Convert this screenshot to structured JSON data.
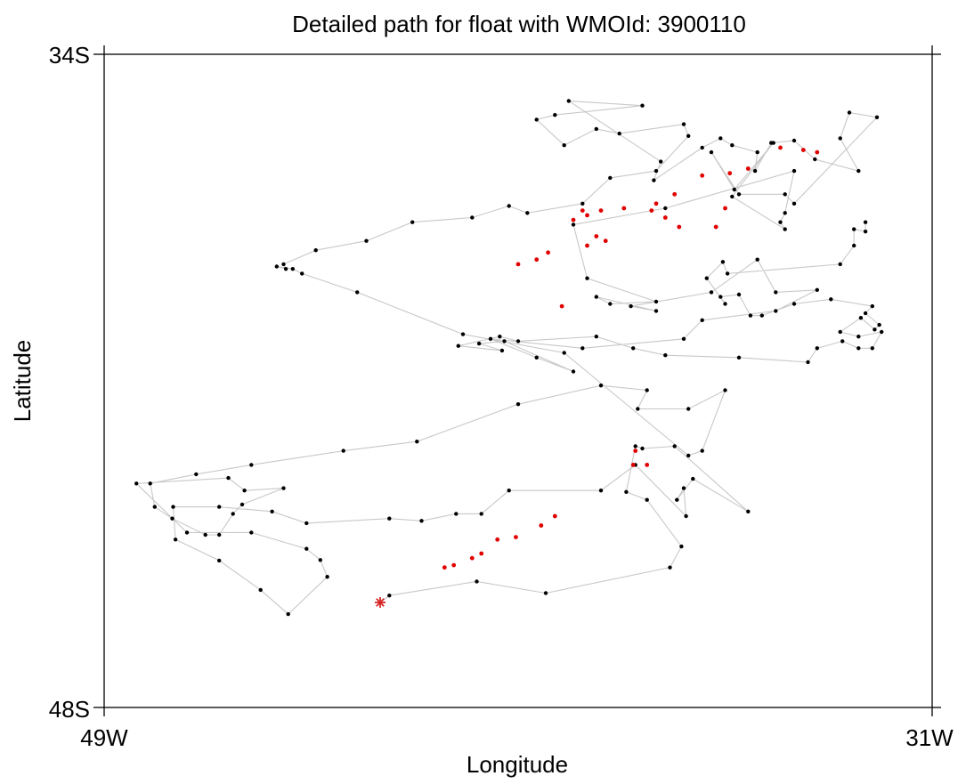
{
  "chart_data": {
    "type": "scatter",
    "title": "Detailed path for float with WMOId: 3900110",
    "xlabel": "Longitude",
    "ylabel": "Latitude",
    "xlim": [
      -49,
      -31
    ],
    "ylim": [
      -48,
      -34
    ],
    "x_tick_labels": [
      "49W",
      "31W"
    ],
    "y_tick_labels": [
      "34S",
      "48S"
    ],
    "grid": false,
    "colors": {
      "path": "#c8c8c8",
      "point": "#000000",
      "highlight": "#e00000",
      "start_marker": "#d62728"
    },
    "start_marker": {
      "x": -43.0,
      "y": -45.75,
      "symbol": "asterisk"
    },
    "series": [
      {
        "values": [
          [
            -43.0,
            -45.75
          ],
          [
            -42.8,
            -45.6
          ],
          [
            -40.9,
            -45.3
          ],
          [
            -39.4,
            -45.55
          ],
          [
            -36.7,
            -45.0
          ],
          [
            -36.45,
            -44.55
          ],
          [
            -37.2,
            -43.55
          ],
          [
            -37.65,
            -43.38
          ],
          [
            -37.45,
            -42.4
          ],
          [
            -37.3,
            -42.45
          ],
          [
            -36.6,
            -42.4
          ],
          [
            -35.0,
            -43.8
          ],
          [
            -36.2,
            -43.1
          ],
          [
            -36.55,
            -43.55
          ],
          [
            -36.4,
            -43.3
          ],
          [
            -36.35,
            -43.9
          ],
          [
            -37.45,
            -42.8
          ],
          [
            -38.2,
            -43.35
          ],
          [
            -40.2,
            -43.35
          ],
          [
            -40.8,
            -43.85
          ],
          [
            -41.35,
            -43.85
          ],
          [
            -42.1,
            -44.0
          ],
          [
            -42.8,
            -43.95
          ],
          [
            -44.6,
            -44.05
          ],
          [
            -45.35,
            -43.8
          ],
          [
            -46.5,
            -43.7
          ],
          [
            -47.5,
            -43.7
          ],
          [
            -47.45,
            -44.4
          ],
          [
            -46.5,
            -44.85
          ],
          [
            -45.6,
            -45.48
          ],
          [
            -45.0,
            -46.0
          ],
          [
            -44.15,
            -45.2
          ],
          [
            -44.3,
            -44.84
          ],
          [
            -44.6,
            -44.6
          ],
          [
            -45.8,
            -44.25
          ],
          [
            -47.2,
            -44.25
          ],
          [
            -48.3,
            -43.2
          ],
          [
            -46.3,
            -43.08
          ],
          [
            -45.95,
            -43.35
          ],
          [
            -45.1,
            -43.3
          ],
          [
            -46.0,
            -43.65
          ],
          [
            -46.2,
            -43.85
          ],
          [
            -46.5,
            -44.3
          ],
          [
            -46.8,
            -44.3
          ],
          [
            -47.52,
            -43.95
          ],
          [
            -47.9,
            -43.7
          ],
          [
            -48.0,
            -43.2
          ],
          [
            -47.0,
            -43.0
          ],
          [
            -45.8,
            -42.8
          ],
          [
            -43.8,
            -42.5
          ],
          [
            -42.2,
            -42.3
          ],
          [
            -40.0,
            -41.5
          ],
          [
            -38.2,
            -41.1
          ],
          [
            -37.2,
            -41.2
          ],
          [
            -37.4,
            -41.6
          ],
          [
            -36.3,
            -41.6
          ],
          [
            -35.5,
            -41.2
          ],
          [
            -36.0,
            -42.5
          ],
          [
            -36.3,
            -42.6
          ],
          [
            -39.0,
            -40.4
          ],
          [
            -41.2,
            -40.0
          ],
          [
            -43.5,
            -39.1
          ],
          [
            -44.7,
            -38.7
          ],
          [
            -44.9,
            -38.6
          ],
          [
            -45.25,
            -38.55
          ],
          [
            -45.05,
            -38.6
          ],
          [
            -45.1,
            -38.5
          ],
          [
            -44.4,
            -38.2
          ],
          [
            -43.3,
            -38.0
          ],
          [
            -42.3,
            -37.6
          ],
          [
            -41.0,
            -37.5
          ],
          [
            -40.2,
            -37.25
          ],
          [
            -39.8,
            -37.4
          ],
          [
            -38.6,
            -37.2
          ],
          [
            -38.0,
            -36.65
          ],
          [
            -37.0,
            -36.5
          ],
          [
            -36.3,
            -35.75
          ],
          [
            -36.4,
            -35.5
          ],
          [
            -37.8,
            -35.7
          ],
          [
            -38.3,
            -35.6
          ],
          [
            -39.0,
            -35.95
          ],
          [
            -39.6,
            -35.4
          ],
          [
            -39.2,
            -35.3
          ],
          [
            -37.3,
            -35.1
          ],
          [
            -38.9,
            -35.0
          ],
          [
            -36.9,
            -36.3
          ],
          [
            -37.05,
            -36.7
          ],
          [
            -36.0,
            -36.0
          ],
          [
            -35.6,
            -35.8
          ],
          [
            -35.35,
            -35.95
          ],
          [
            -34.8,
            -36.1
          ],
          [
            -34.85,
            -36.5
          ],
          [
            -34.5,
            -35.9
          ],
          [
            -34.0,
            -35.85
          ],
          [
            -33.55,
            -36.25
          ],
          [
            -32.6,
            -36.5
          ],
          [
            -33.0,
            -35.8
          ],
          [
            -32.8,
            -35.25
          ],
          [
            -32.2,
            -35.35
          ],
          [
            -34.0,
            -37.2
          ],
          [
            -34.2,
            -37.0
          ],
          [
            -35.2,
            -37.0
          ],
          [
            -35.8,
            -36.1
          ],
          [
            -35.3,
            -36.9
          ],
          [
            -34.45,
            -35.9
          ],
          [
            -35.35,
            -37.05
          ],
          [
            -34.2,
            -37.75
          ],
          [
            -34.3,
            -37.6
          ],
          [
            -34.2,
            -37.4
          ],
          [
            -34.0,
            -36.5
          ],
          [
            -36.8,
            -37.3
          ],
          [
            -38.8,
            -37.65
          ],
          [
            -38.5,
            -38.8
          ],
          [
            -37.0,
            -39.3
          ],
          [
            -38.0,
            -39.35
          ],
          [
            -38.3,
            -39.2
          ],
          [
            -37.0,
            -39.5
          ],
          [
            -37.55,
            -39.4
          ],
          [
            -35.8,
            -39.1
          ],
          [
            -34.8,
            -38.4
          ],
          [
            -34.4,
            -39.1
          ],
          [
            -33.5,
            -39.05
          ],
          [
            -34.4,
            -39.5
          ],
          [
            -36.0,
            -39.7
          ],
          [
            -36.4,
            -40.1
          ],
          [
            -38.6,
            -40.3
          ],
          [
            -40.6,
            -40.1
          ],
          [
            -39.6,
            -40.5
          ],
          [
            -38.8,
            -40.8
          ],
          [
            -40.3,
            -40.15
          ],
          [
            -40.85,
            -40.2
          ],
          [
            -40.35,
            -40.35
          ],
          [
            -41.3,
            -40.25
          ],
          [
            -40.4,
            -40.05
          ],
          [
            -40.0,
            -40.15
          ],
          [
            -38.3,
            -40.05
          ],
          [
            -37.5,
            -40.3
          ],
          [
            -36.8,
            -40.45
          ],
          [
            -35.2,
            -40.5
          ],
          [
            -33.7,
            -40.6
          ],
          [
            -33.5,
            -40.3
          ],
          [
            -32.95,
            -40.15
          ],
          [
            -32.6,
            -40.3
          ],
          [
            -32.3,
            -40.3
          ],
          [
            -32.1,
            -39.95
          ],
          [
            -32.6,
            -40.05
          ],
          [
            -33.0,
            -39.95
          ],
          [
            -32.55,
            -39.65
          ],
          [
            -32.25,
            -39.9
          ],
          [
            -32.15,
            -39.8
          ],
          [
            -32.45,
            -39.55
          ],
          [
            -32.3,
            -39.4
          ],
          [
            -33.2,
            -39.25
          ],
          [
            -34.0,
            -39.35
          ],
          [
            -34.7,
            -39.6
          ],
          [
            -34.95,
            -39.6
          ],
          [
            -35.2,
            -39.15
          ],
          [
            -35.6,
            -39.2
          ],
          [
            -35.5,
            -39.35
          ],
          [
            -35.9,
            -38.8
          ],
          [
            -35.55,
            -38.45
          ],
          [
            -35.45,
            -38.7
          ],
          [
            -33.0,
            -38.5
          ],
          [
            -32.7,
            -38.1
          ],
          [
            -32.7,
            -37.75
          ],
          [
            -32.45,
            -37.8
          ],
          [
            -32.45,
            -37.6
          ]
        ],
        "highlighted_points": [
          [
            -41.6,
            -45.0
          ],
          [
            -41.4,
            -44.95
          ],
          [
            -41.0,
            -44.8
          ],
          [
            -40.8,
            -44.7
          ],
          [
            -40.45,
            -44.4
          ],
          [
            -40.05,
            -44.35
          ],
          [
            -39.5,
            -44.1
          ],
          [
            -39.2,
            -43.9
          ],
          [
            -37.2,
            -42.8
          ],
          [
            -37.45,
            -42.5
          ],
          [
            -37.5,
            -42.8
          ],
          [
            -39.05,
            -39.4
          ],
          [
            -40.0,
            -38.5
          ],
          [
            -39.6,
            -38.4
          ],
          [
            -39.35,
            -38.25
          ],
          [
            -38.5,
            -38.1
          ],
          [
            -38.1,
            -38.0
          ],
          [
            -38.3,
            -37.9
          ],
          [
            -36.5,
            -37.7
          ],
          [
            -35.7,
            -37.7
          ],
          [
            -35.5,
            -37.3
          ],
          [
            -36.8,
            -37.5
          ],
          [
            -37.1,
            -37.35
          ],
          [
            -37.0,
            -37.2
          ],
          [
            -37.7,
            -37.3
          ],
          [
            -38.2,
            -37.35
          ],
          [
            -38.8,
            -37.55
          ],
          [
            -38.6,
            -37.35
          ],
          [
            -38.5,
            -37.45
          ],
          [
            -36.6,
            -37.0
          ],
          [
            -36.0,
            -36.6
          ],
          [
            -35.4,
            -36.55
          ],
          [
            -35.0,
            -36.45
          ],
          [
            -34.3,
            -36.0
          ],
          [
            -33.8,
            -36.05
          ],
          [
            -33.5,
            -36.1
          ]
        ]
      }
    ]
  }
}
